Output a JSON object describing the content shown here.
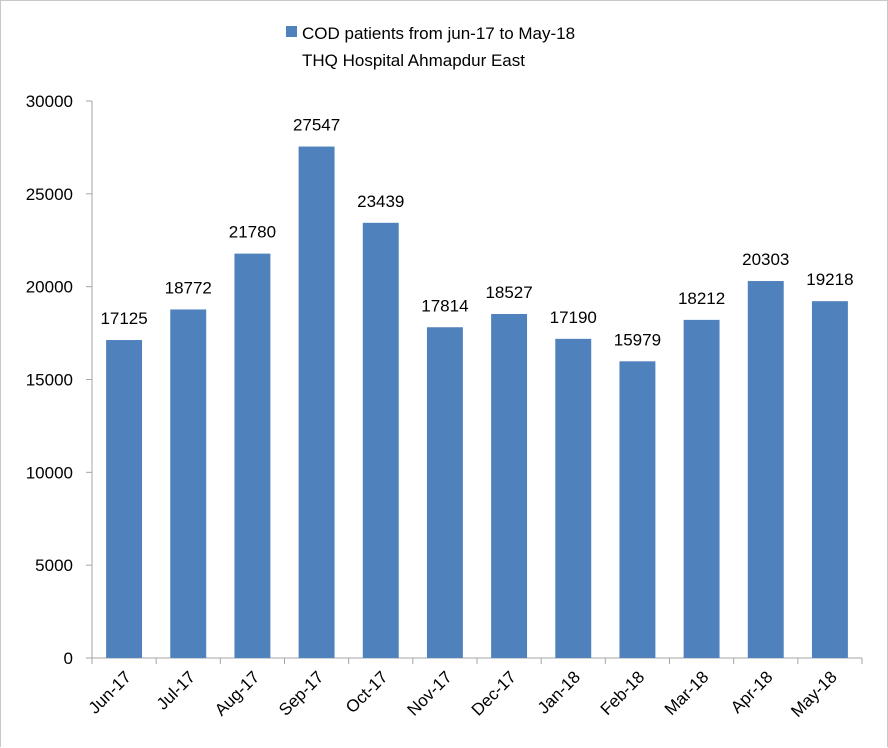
{
  "chart_data": {
    "type": "bar",
    "legend": {
      "entry": "COD patients from jun-17 to May-18",
      "subtitle": "THQ Hospital Ahmapdur East",
      "placement": "top-center"
    },
    "categories": [
      "Jun-17",
      "Jul-17",
      "Aug-17",
      "Sep-17",
      "Oct-17",
      "Nov-17",
      "Dec-17",
      "Jan-18",
      "Feb-18",
      "Mar-18",
      "Apr-18",
      "May-18"
    ],
    "series": [
      {
        "name": "COD patients from jun-17 to May-18",
        "color": "#4f81bd",
        "values": [
          17125,
          18772,
          21780,
          27547,
          23439,
          17814,
          18527,
          17190,
          15979,
          18212,
          20303,
          19218
        ]
      }
    ],
    "data_labels": [
      "17125",
      "18772",
      "21780",
      "27547",
      "23439",
      "17814",
      "18527",
      "17190",
      "15979",
      "18212",
      "20303",
      "19218"
    ],
    "y_ticks": [
      "0",
      "5000",
      "10000",
      "15000",
      "20000",
      "25000",
      "30000"
    ],
    "y_tick_values": [
      0,
      5000,
      10000,
      15000,
      20000,
      25000,
      30000
    ],
    "ylim": [
      0,
      30000
    ],
    "grid": false,
    "axis_color": "#a6a6a6"
  }
}
